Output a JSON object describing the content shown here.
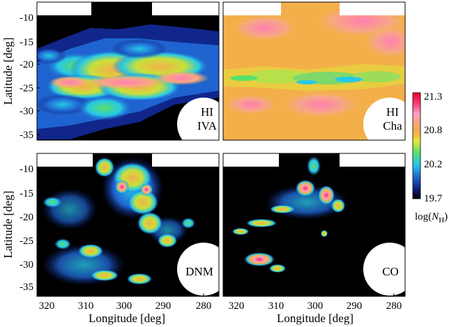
{
  "panels": [
    {
      "id": "hi-iva",
      "label_line1": "HI",
      "label_line2": "IVA"
    },
    {
      "id": "hi-cha",
      "label_line1": "HI",
      "label_line2": "Cha"
    },
    {
      "id": "dnm",
      "label_line1": "DNM",
      "label_line2": ""
    },
    {
      "id": "co",
      "label_line1": "CO",
      "label_line2": ""
    }
  ],
  "axes": {
    "xlabel": "Longitude [deg]",
    "ylabel": "Latitude [deg]",
    "x_ticks": [
      "320",
      "310",
      "300",
      "290",
      "280"
    ],
    "y_ticks": [
      "-10",
      "-15",
      "-20",
      "-25",
      "-30",
      "-35"
    ]
  },
  "colorbar": {
    "ticks": [
      "21.3",
      "20.8",
      "20.2",
      "19.7"
    ],
    "label_prefix": "log(",
    "label_var": "N",
    "label_sub": "H",
    "label_suffix": ")",
    "colors": [
      "#000000",
      "#0a1a6e",
      "#1f63d0",
      "#27c8e6",
      "#5be06a",
      "#e8e83a",
      "#f3b04a",
      "#f5a870",
      "#ff9fc8",
      "#ff3a7a",
      "#e8002a"
    ]
  }
}
